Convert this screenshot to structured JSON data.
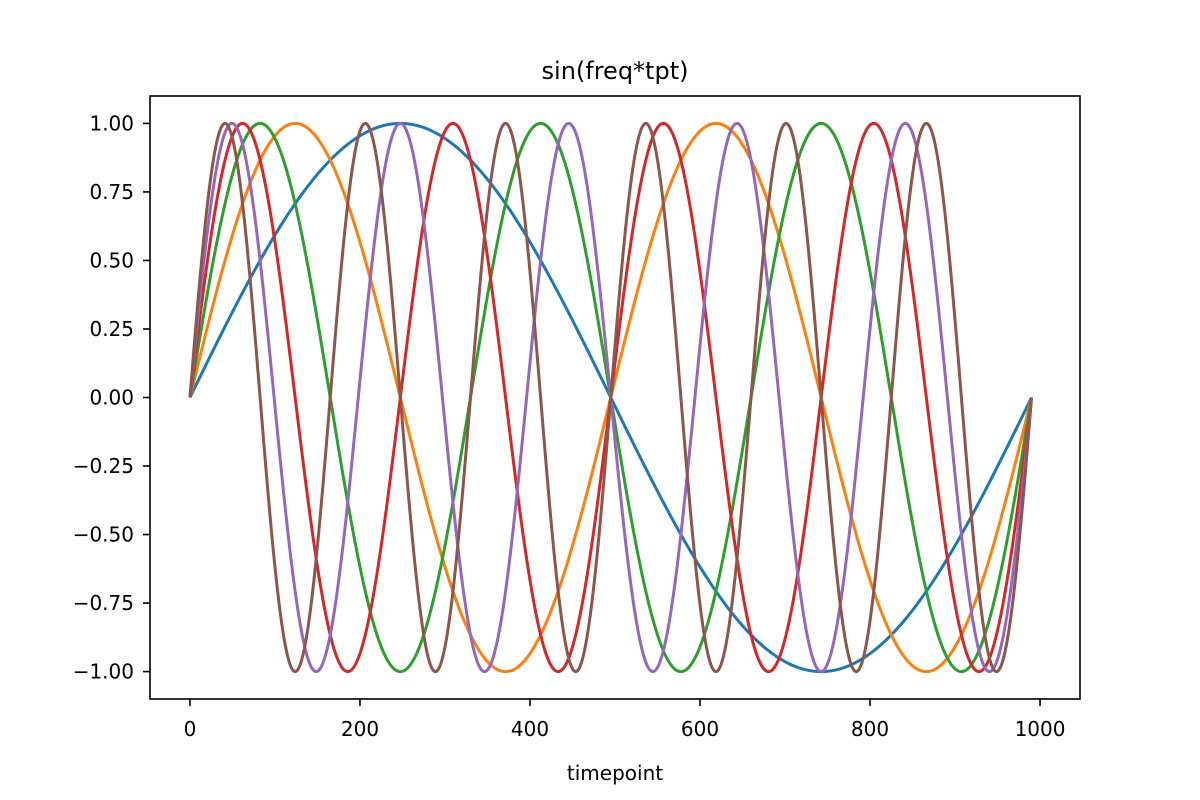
{
  "chart_data": {
    "type": "line",
    "title": "sin(freq*tpt)",
    "xlabel": "timepoint",
    "ylabel": "",
    "xlim": [
      -47,
      1047
    ],
    "ylim": [
      -1.1,
      1.1
    ],
    "x_ticks": [
      0,
      200,
      400,
      600,
      800,
      1000
    ],
    "x_tick_labels": [
      "0",
      "200",
      "400",
      "600",
      "800",
      "1000"
    ],
    "y_ticks": [
      1.0,
      0.75,
      0.5,
      0.25,
      0.0,
      -0.25,
      -0.5,
      -0.75,
      -1.0
    ],
    "y_tick_labels": [
      "1.00",
      "0.75",
      "0.50",
      "0.25",
      "0.00",
      "−0.25",
      "−0.50",
      "−0.75",
      "−1.00"
    ],
    "grid": false,
    "legend": "none",
    "x_range": [
      0,
      990
    ],
    "function": "y = sin(cycles * 2 * pi * timepoint / 990)",
    "series": [
      {
        "cycles": 1,
        "color": "#1f77b4"
      },
      {
        "cycles": 2,
        "color": "#ff7f0e"
      },
      {
        "cycles": 3,
        "color": "#2ca02c"
      },
      {
        "cycles": 4,
        "color": "#d62728"
      },
      {
        "cycles": 5,
        "color": "#9467bd"
      },
      {
        "cycles": 6,
        "color": "#8c564b"
      }
    ]
  }
}
